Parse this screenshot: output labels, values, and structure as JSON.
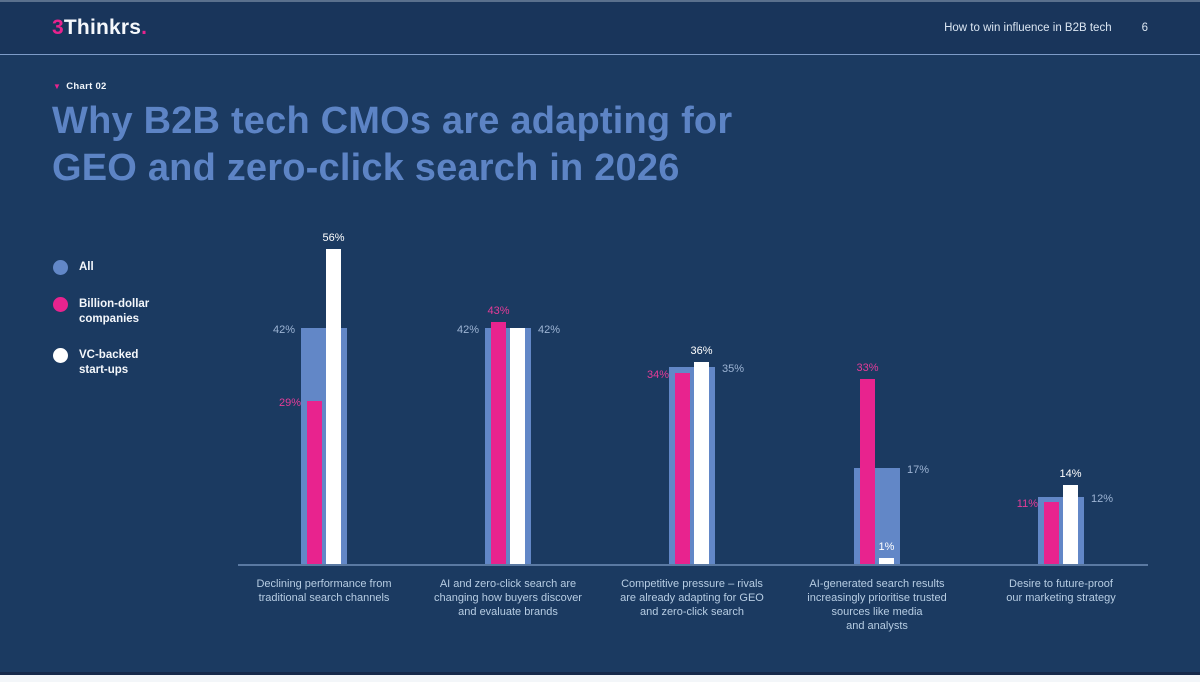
{
  "header": {
    "logo": {
      "prefix": "3",
      "name": "Thinkrs",
      "dot": "."
    },
    "doc_title": "How to win influence in B2B tech",
    "page_number": "6"
  },
  "kicker": {
    "marker": "▼",
    "label": "Chart 02"
  },
  "title": {
    "line1": "Why B2B tech CMOs are adapting for",
    "line2": "GEO and zero-click search in 2026"
  },
  "legend": {
    "items": [
      {
        "label": "All",
        "color": "#6287c7"
      },
      {
        "label": "Billion-dollar\ncompanies",
        "color": "#e8238e"
      },
      {
        "label": "VC-backed\nstart-ups",
        "color": "#ffffff"
      }
    ]
  },
  "chart_data": {
    "type": "bar",
    "title": "Why B2B tech CMOs are adapting for GEO and zero-click search in 2026",
    "unit": "%",
    "ylim": [
      0,
      60
    ],
    "grid": false,
    "legend_position": "left",
    "categories": [
      "Declining performance from\ntraditional search channels",
      "AI and zero-click search are\nchanging how buyers discover\nand evaluate brands",
      "Competitive pressure – rivals\nare already adapting for GEO\nand zero-click search",
      "AI-generated search results\nincreasingly prioritise trusted\nsources like media\nand analysts",
      "Desire to future-proof\nour marketing strategy"
    ],
    "series": [
      {
        "name": "All",
        "color": "#6287c7",
        "values": [
          42,
          42,
          35,
          17,
          12
        ],
        "labels": [
          "42%",
          "42%",
          "35%",
          "17%",
          "12%"
        ],
        "label_pos": [
          "left",
          "left",
          "right",
          "right",
          "right"
        ],
        "label_colors": [
          "#9db4d4",
          "#9db4d4",
          "#9db4d4",
          "#9db4d4",
          "#9db4d4"
        ]
      },
      {
        "name": "Billion-dollar companies",
        "color": "#e8238e",
        "values": [
          29,
          43,
          34,
          33,
          11
        ],
        "labels": [
          "29%",
          "43%",
          "34%",
          "33%",
          "11%"
        ],
        "label_pos": [
          "left",
          "above",
          "left",
          "above",
          "left"
        ],
        "label_colors": [
          "#e53c98",
          "#e53c98",
          "#e53c98",
          "#e53c98",
          "#e53c98"
        ]
      },
      {
        "name": "VC-backed start-ups",
        "color": "#ffffff",
        "values": [
          56,
          42,
          36,
          1,
          14
        ],
        "labels": [
          "56%",
          "42%",
          "36%",
          "1%",
          "14%"
        ],
        "label_pos": [
          "above",
          "right",
          "above",
          "above",
          "above"
        ],
        "label_colors": [
          "#ffffff",
          "#9db4d4",
          "#ffffff",
          "#ffffff",
          "#ffffff"
        ]
      }
    ]
  }
}
